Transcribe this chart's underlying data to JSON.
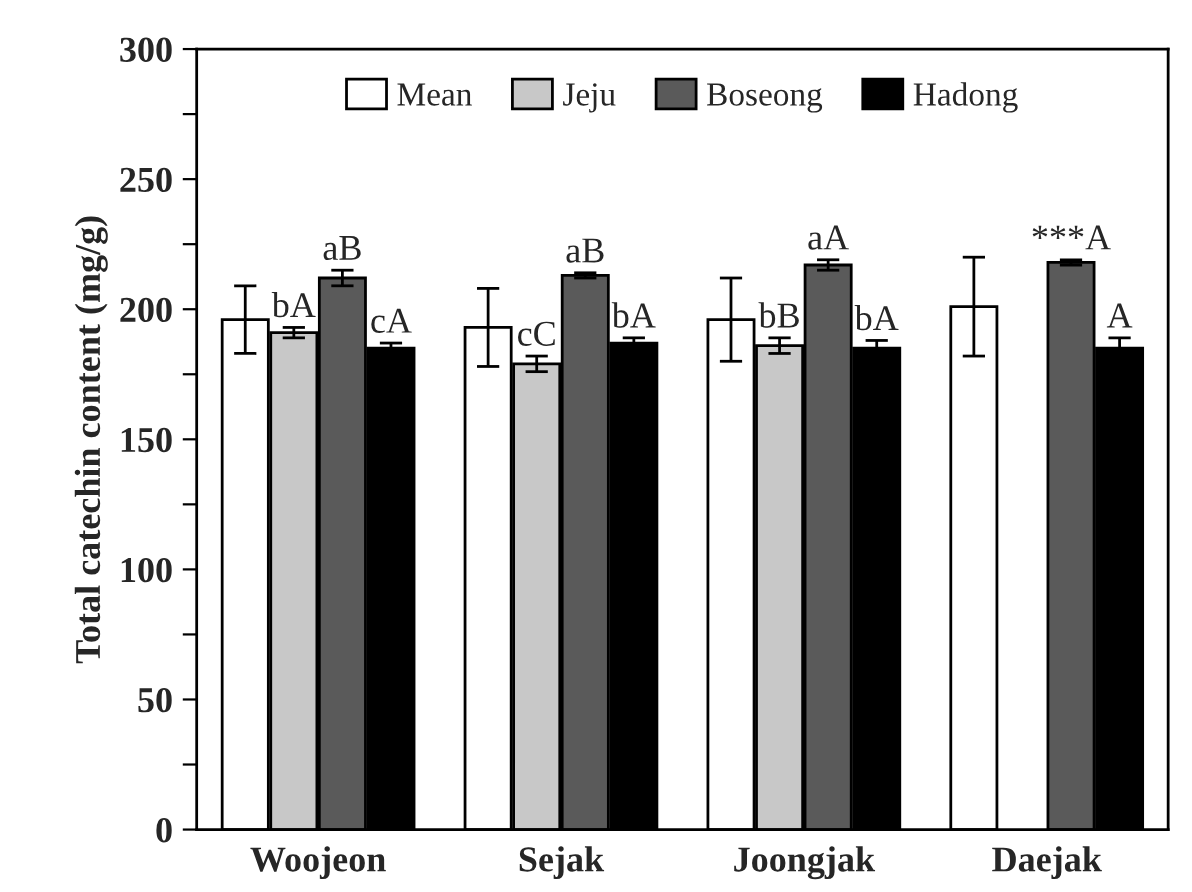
{
  "chart_data": {
    "type": "bar",
    "ylabel": "Total catechin content (mg/g)",
    "categories": [
      "Woojeon",
      "Sejak",
      "Joongjak",
      "Daejak"
    ],
    "series": [
      {
        "name": "Mean",
        "color": "#ffffff",
        "values": [
          196,
          193,
          196,
          201
        ],
        "errors": [
          13,
          15,
          16,
          19
        ]
      },
      {
        "name": "Jeju",
        "color": "#c8c8c8",
        "values": [
          191,
          179,
          186,
          null
        ],
        "errors": [
          2,
          3,
          3,
          null
        ],
        "value_labels": [
          "bA",
          "cC",
          "bB",
          null
        ]
      },
      {
        "name": "Boseong",
        "color": "#5a5a5a",
        "values": [
          212,
          213,
          217,
          218
        ],
        "errors": [
          3,
          1,
          2,
          1
        ],
        "value_labels": [
          "aB",
          "aB",
          "aA",
          "***A"
        ]
      },
      {
        "name": "Hadong",
        "color": "#000000",
        "values": [
          185,
          187,
          185,
          185
        ],
        "errors": [
          2,
          2,
          3,
          4
        ],
        "value_labels": [
          "cA",
          "bA",
          "bA",
          "A"
        ]
      }
    ],
    "ylim": [
      0,
      300
    ],
    "yticks": [
      0,
      {
        "value": 25,
        "label": null
      },
      50,
      {
        "value": 75,
        "label": null
      },
      100,
      {
        "value": 125,
        "label": null
      },
      150,
      {
        "value": 175,
        "label": null
      },
      200,
      {
        "value": 225,
        "label": null
      },
      250,
      {
        "value": 275,
        "label": null
      },
      300
    ],
    "grid": false,
    "legend": "top"
  }
}
